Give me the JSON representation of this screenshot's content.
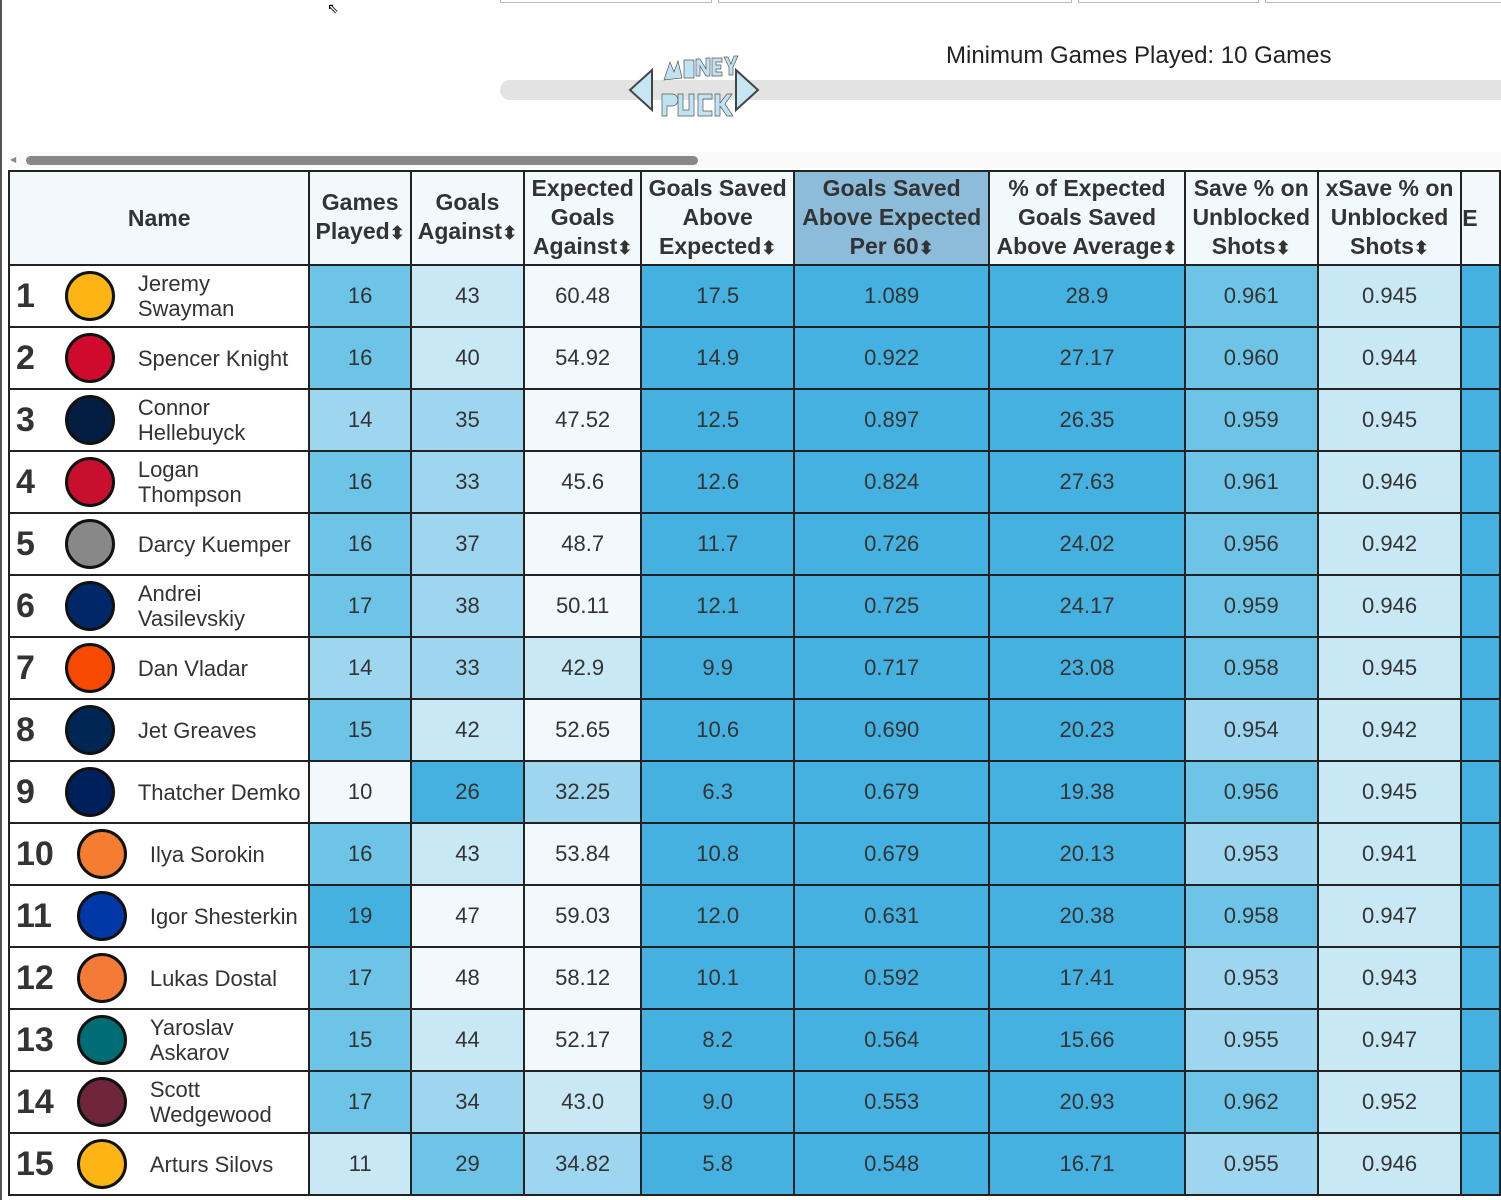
{
  "min_games_label": "Minimum Games Played: 10 Games",
  "logo_text": "MONEY PUCK",
  "columns": [
    "Name",
    "Games Played",
    "Goals Against",
    "Expected Goals Against",
    "Goals Saved Above Expected",
    "Goals Saved Above Expected Per 60",
    "% of Expected Goals Saved Above Average",
    "Save % on Unblocked Shots",
    "xSave % on Unblocked Shots",
    "E"
  ],
  "sort_icon": "⬍",
  "colors": {
    "l0": "#f2f9fd",
    "l1": "#c8e8f5",
    "l2": "#9fd6ef",
    "l3": "#6ec4e7",
    "l4": "#44b1e0",
    "sorted_header": "#8cbcd9"
  },
  "rows": [
    {
      "rank": "1",
      "name": "Jeremy Swayman",
      "team": "bruins",
      "team_color": "#fcb514",
      "cells": [
        "16",
        "43",
        "60.48",
        "17.5",
        "1.089",
        "28.9",
        "0.961",
        "0.945",
        ""
      ],
      "levels": [
        3,
        1,
        0,
        4,
        4,
        4,
        3,
        1,
        4
      ]
    },
    {
      "rank": "2",
      "name": "Spencer Knight",
      "team": "blackhawks",
      "team_color": "#cf0a2c",
      "cells": [
        "16",
        "40",
        "54.92",
        "14.9",
        "0.922",
        "27.17",
        "0.960",
        "0.944",
        ""
      ],
      "levels": [
        3,
        1,
        0,
        4,
        4,
        4,
        3,
        1,
        4
      ]
    },
    {
      "rank": "3",
      "name": "Connor Hellebuyck",
      "team": "jets",
      "team_color": "#041e42",
      "cells": [
        "14",
        "35",
        "47.52",
        "12.5",
        "0.897",
        "26.35",
        "0.959",
        "0.945",
        ""
      ],
      "levels": [
        2,
        2,
        0,
        4,
        4,
        4,
        3,
        1,
        4
      ]
    },
    {
      "rank": "4",
      "name": "Logan Thompson",
      "team": "capitals",
      "team_color": "#c8102e",
      "cells": [
        "16",
        "33",
        "45.6",
        "12.6",
        "0.824",
        "27.63",
        "0.961",
        "0.946",
        ""
      ],
      "levels": [
        3,
        2,
        0,
        4,
        4,
        4,
        3,
        1,
        4
      ]
    },
    {
      "rank": "5",
      "name": "Darcy Kuemper",
      "team": "kings",
      "team_color": "#888888",
      "cells": [
        "16",
        "37",
        "48.7",
        "11.7",
        "0.726",
        "24.02",
        "0.956",
        "0.942",
        ""
      ],
      "levels": [
        3,
        2,
        0,
        4,
        4,
        4,
        3,
        1,
        4
      ]
    },
    {
      "rank": "6",
      "name": "Andrei Vasilevskiy",
      "team": "lightning",
      "team_color": "#002868",
      "cells": [
        "17",
        "38",
        "50.11",
        "12.1",
        "0.725",
        "24.17",
        "0.959",
        "0.946",
        ""
      ],
      "levels": [
        3,
        2,
        0,
        4,
        4,
        4,
        3,
        1,
        4
      ]
    },
    {
      "rank": "7",
      "name": "Dan Vladar",
      "team": "flyers",
      "team_color": "#f74902",
      "cells": [
        "14",
        "33",
        "42.9",
        "9.9",
        "0.717",
        "23.08",
        "0.958",
        "0.945",
        ""
      ],
      "levels": [
        2,
        2,
        1,
        4,
        4,
        4,
        3,
        1,
        4
      ]
    },
    {
      "rank": "8",
      "name": "Jet Greaves",
      "team": "blue-jackets",
      "team_color": "#002654",
      "cells": [
        "15",
        "42",
        "52.65",
        "10.6",
        "0.690",
        "20.23",
        "0.954",
        "0.942",
        ""
      ],
      "levels": [
        3,
        1,
        0,
        4,
        4,
        4,
        2,
        1,
        4
      ]
    },
    {
      "rank": "9",
      "name": "Thatcher Demko",
      "team": "canucks",
      "team_color": "#00205b",
      "cells": [
        "10",
        "26",
        "32.25",
        "6.3",
        "0.679",
        "19.38",
        "0.956",
        "0.945",
        ""
      ],
      "levels": [
        0,
        4,
        2,
        4,
        4,
        4,
        3,
        1,
        4
      ]
    },
    {
      "rank": "10",
      "name": "Ilya Sorokin",
      "team": "islanders",
      "team_color": "#f47d30",
      "cells": [
        "16",
        "43",
        "53.84",
        "10.8",
        "0.679",
        "20.13",
        "0.953",
        "0.941",
        ""
      ],
      "levels": [
        3,
        1,
        0,
        4,
        4,
        4,
        2,
        1,
        4
      ]
    },
    {
      "rank": "11",
      "name": "Igor Shesterkin",
      "team": "rangers",
      "team_color": "#0038a8",
      "cells": [
        "19",
        "47",
        "59.03",
        "12.0",
        "0.631",
        "20.38",
        "0.958",
        "0.947",
        ""
      ],
      "levels": [
        4,
        0,
        0,
        4,
        4,
        4,
        3,
        1,
        4
      ]
    },
    {
      "rank": "12",
      "name": "Lukas Dostal",
      "team": "ducks",
      "team_color": "#f47a38",
      "cells": [
        "17",
        "48",
        "58.12",
        "10.1",
        "0.592",
        "17.41",
        "0.953",
        "0.943",
        ""
      ],
      "levels": [
        3,
        0,
        0,
        4,
        4,
        4,
        2,
        1,
        4
      ]
    },
    {
      "rank": "13",
      "name": "Yaroslav Askarov",
      "team": "sharks",
      "team_color": "#006d75",
      "cells": [
        "15",
        "44",
        "52.17",
        "8.2",
        "0.564",
        "15.66",
        "0.955",
        "0.947",
        ""
      ],
      "levels": [
        3,
        1,
        0,
        4,
        4,
        4,
        2,
        1,
        4
      ]
    },
    {
      "rank": "14",
      "name": "Scott Wedgewood",
      "team": "avalanche",
      "team_color": "#6f263d",
      "cells": [
        "17",
        "34",
        "43.0",
        "9.0",
        "0.553",
        "20.93",
        "0.962",
        "0.952",
        ""
      ],
      "levels": [
        3,
        2,
        1,
        4,
        4,
        4,
        3,
        1,
        4
      ]
    },
    {
      "rank": "15",
      "name": "Arturs Silovs",
      "team": "penguins",
      "team_color": "#fcb514",
      "cells": [
        "11",
        "29",
        "34.82",
        "5.8",
        "0.548",
        "16.71",
        "0.955",
        "0.946",
        ""
      ],
      "levels": [
        1,
        3,
        2,
        4,
        4,
        4,
        2,
        1,
        4
      ]
    }
  ]
}
